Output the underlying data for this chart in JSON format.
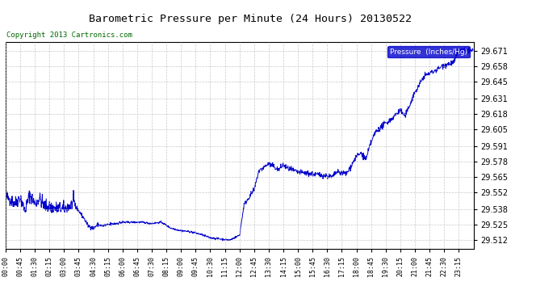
{
  "title": "Barometric Pressure per Minute (24 Hours) 20130522",
  "copyright_text": "Copyright 2013 Cartronics.com",
  "legend_label": "Pressure  (Inches/Hg)",
  "background_color": "#ffffff",
  "plot_bg_color": "#ffffff",
  "line_color": "#0000cc",
  "grid_color": "#bbbbbb",
  "yticks": [
    29.512,
    29.525,
    29.538,
    29.552,
    29.565,
    29.578,
    29.591,
    29.605,
    29.618,
    29.631,
    29.645,
    29.658,
    29.671
  ],
  "ylim": [
    29.505,
    29.678
  ],
  "xtick_labels": [
    "00:00",
    "00:45",
    "01:30",
    "02:15",
    "03:00",
    "03:45",
    "04:30",
    "05:15",
    "06:00",
    "06:45",
    "07:30",
    "08:15",
    "09:00",
    "09:45",
    "10:30",
    "11:15",
    "12:00",
    "12:45",
    "13:30",
    "14:15",
    "15:00",
    "15:45",
    "16:30",
    "17:15",
    "18:00",
    "18:45",
    "19:30",
    "20:15",
    "21:00",
    "21:45",
    "22:30",
    "23:15"
  ],
  "time_minutes": [
    0,
    45,
    90,
    135,
    180,
    225,
    270,
    315,
    360,
    405,
    450,
    495,
    540,
    585,
    630,
    675,
    720,
    765,
    810,
    855,
    900,
    945,
    990,
    1035,
    1080,
    1125,
    1170,
    1215,
    1260,
    1305,
    1350,
    1395
  ],
  "segments": [
    {
      "s": 0,
      "e": 30,
      "sv": 29.549,
      "ev": 29.543
    },
    {
      "s": 30,
      "e": 45,
      "sv": 29.543,
      "ev": 29.548
    },
    {
      "s": 45,
      "e": 60,
      "sv": 29.548,
      "ev": 29.537
    },
    {
      "s": 60,
      "e": 75,
      "sv": 29.537,
      "ev": 29.55
    },
    {
      "s": 75,
      "e": 90,
      "sv": 29.55,
      "ev": 29.543
    },
    {
      "s": 90,
      "e": 105,
      "sv": 29.543,
      "ev": 29.547
    },
    {
      "s": 105,
      "e": 120,
      "sv": 29.547,
      "ev": 29.541
    },
    {
      "s": 120,
      "e": 150,
      "sv": 29.541,
      "ev": 29.539
    },
    {
      "s": 150,
      "e": 180,
      "sv": 29.539,
      "ev": 29.538
    },
    {
      "s": 180,
      "e": 210,
      "sv": 29.538,
      "ev": 29.543
    },
    {
      "s": 210,
      "e": 240,
      "sv": 29.543,
      "ev": 29.531
    },
    {
      "s": 240,
      "e": 255,
      "sv": 29.531,
      "ev": 29.524
    },
    {
      "s": 255,
      "e": 270,
      "sv": 29.524,
      "ev": 29.522
    },
    {
      "s": 270,
      "e": 285,
      "sv": 29.522,
      "ev": 29.525
    },
    {
      "s": 285,
      "e": 300,
      "sv": 29.525,
      "ev": 29.524
    },
    {
      "s": 300,
      "e": 360,
      "sv": 29.524,
      "ev": 29.527
    },
    {
      "s": 360,
      "e": 420,
      "sv": 29.527,
      "ev": 29.527
    },
    {
      "s": 420,
      "e": 450,
      "sv": 29.527,
      "ev": 29.526
    },
    {
      "s": 450,
      "e": 480,
      "sv": 29.526,
      "ev": 29.527
    },
    {
      "s": 480,
      "e": 510,
      "sv": 29.527,
      "ev": 29.522
    },
    {
      "s": 510,
      "e": 540,
      "sv": 29.522,
      "ev": 29.52
    },
    {
      "s": 540,
      "e": 570,
      "sv": 29.52,
      "ev": 29.519
    },
    {
      "s": 570,
      "e": 600,
      "sv": 29.519,
      "ev": 29.517
    },
    {
      "s": 600,
      "e": 630,
      "sv": 29.517,
      "ev": 29.514
    },
    {
      "s": 630,
      "e": 660,
      "sv": 29.514,
      "ev": 29.513
    },
    {
      "s": 660,
      "e": 690,
      "sv": 29.513,
      "ev": 29.512
    },
    {
      "s": 690,
      "e": 720,
      "sv": 29.512,
      "ev": 29.516
    },
    {
      "s": 720,
      "e": 735,
      "sv": 29.516,
      "ev": 29.542
    },
    {
      "s": 735,
      "e": 765,
      "sv": 29.542,
      "ev": 29.554
    },
    {
      "s": 765,
      "e": 780,
      "sv": 29.554,
      "ev": 29.57
    },
    {
      "s": 780,
      "e": 810,
      "sv": 29.57,
      "ev": 29.576
    },
    {
      "s": 810,
      "e": 825,
      "sv": 29.576,
      "ev": 29.574
    },
    {
      "s": 825,
      "e": 840,
      "sv": 29.574,
      "ev": 29.571
    },
    {
      "s": 840,
      "e": 855,
      "sv": 29.571,
      "ev": 29.575
    },
    {
      "s": 855,
      "e": 870,
      "sv": 29.575,
      "ev": 29.572
    },
    {
      "s": 870,
      "e": 900,
      "sv": 29.572,
      "ev": 29.569
    },
    {
      "s": 900,
      "e": 930,
      "sv": 29.569,
      "ev": 29.568
    },
    {
      "s": 930,
      "e": 960,
      "sv": 29.568,
      "ev": 29.567
    },
    {
      "s": 960,
      "e": 990,
      "sv": 29.567,
      "ev": 29.566
    },
    {
      "s": 990,
      "e": 1005,
      "sv": 29.566,
      "ev": 29.565
    },
    {
      "s": 1005,
      "e": 1020,
      "sv": 29.565,
      "ev": 29.569
    },
    {
      "s": 1020,
      "e": 1050,
      "sv": 29.569,
      "ev": 29.568
    },
    {
      "s": 1050,
      "e": 1080,
      "sv": 29.568,
      "ev": 29.582
    },
    {
      "s": 1080,
      "e": 1095,
      "sv": 29.582,
      "ev": 29.585
    },
    {
      "s": 1095,
      "e": 1110,
      "sv": 29.585,
      "ev": 29.58
    },
    {
      "s": 1110,
      "e": 1125,
      "sv": 29.58,
      "ev": 29.594
    },
    {
      "s": 1125,
      "e": 1140,
      "sv": 29.594,
      "ev": 29.603
    },
    {
      "s": 1140,
      "e": 1170,
      "sv": 29.603,
      "ev": 29.61
    },
    {
      "s": 1170,
      "e": 1185,
      "sv": 29.61,
      "ev": 29.613
    },
    {
      "s": 1185,
      "e": 1215,
      "sv": 29.613,
      "ev": 29.621
    },
    {
      "s": 1215,
      "e": 1230,
      "sv": 29.621,
      "ev": 29.616
    },
    {
      "s": 1230,
      "e": 1260,
      "sv": 29.616,
      "ev": 29.636
    },
    {
      "s": 1260,
      "e": 1290,
      "sv": 29.636,
      "ev": 29.65
    },
    {
      "s": 1290,
      "e": 1320,
      "sv": 29.65,
      "ev": 29.654
    },
    {
      "s": 1320,
      "e": 1350,
      "sv": 29.654,
      "ev": 29.659
    },
    {
      "s": 1350,
      "e": 1380,
      "sv": 29.659,
      "ev": 29.661
    },
    {
      "s": 1380,
      "e": 1395,
      "sv": 29.661,
      "ev": 29.671
    }
  ]
}
